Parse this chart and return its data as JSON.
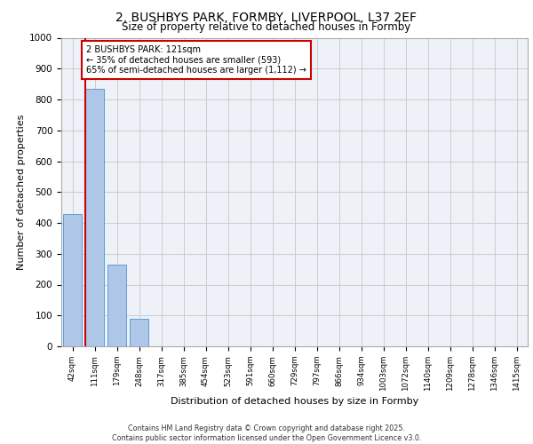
{
  "title_line1": "2, BUSHBYS PARK, FORMBY, LIVERPOOL, L37 2EF",
  "title_line2": "Size of property relative to detached houses in Formby",
  "xlabel": "Distribution of detached houses by size in Formby",
  "ylabel": "Number of detached properties",
  "categories": [
    "42sqm",
    "111sqm",
    "179sqm",
    "248sqm",
    "317sqm",
    "385sqm",
    "454sqm",
    "523sqm",
    "591sqm",
    "660sqm",
    "729sqm",
    "797sqm",
    "866sqm",
    "934sqm",
    "1003sqm",
    "1072sqm",
    "1140sqm",
    "1209sqm",
    "1278sqm",
    "1346sqm",
    "1415sqm"
  ],
  "values": [
    430,
    835,
    265,
    90,
    0,
    0,
    0,
    0,
    0,
    0,
    0,
    0,
    0,
    0,
    0,
    0,
    0,
    0,
    0,
    0,
    0
  ],
  "bar_color": "#aec6e8",
  "bar_edge_color": "#5a9fd4",
  "annotation_text": "2 BUSHBYS PARK: 121sqm\n← 35% of detached houses are smaller (593)\n65% of semi-detached houses are larger (1,112) →",
  "annotation_box_color": "#ffffff",
  "annotation_box_edge": "#cc0000",
  "property_line_color": "#cc0000",
  "ylim": [
    0,
    1000
  ],
  "yticks": [
    0,
    100,
    200,
    300,
    400,
    500,
    600,
    700,
    800,
    900,
    1000
  ],
  "grid_color": "#cccccc",
  "background_color": "#eef2f8",
  "footer": "Contains HM Land Registry data © Crown copyright and database right 2025.\nContains public sector information licensed under the Open Government Licence v3.0."
}
